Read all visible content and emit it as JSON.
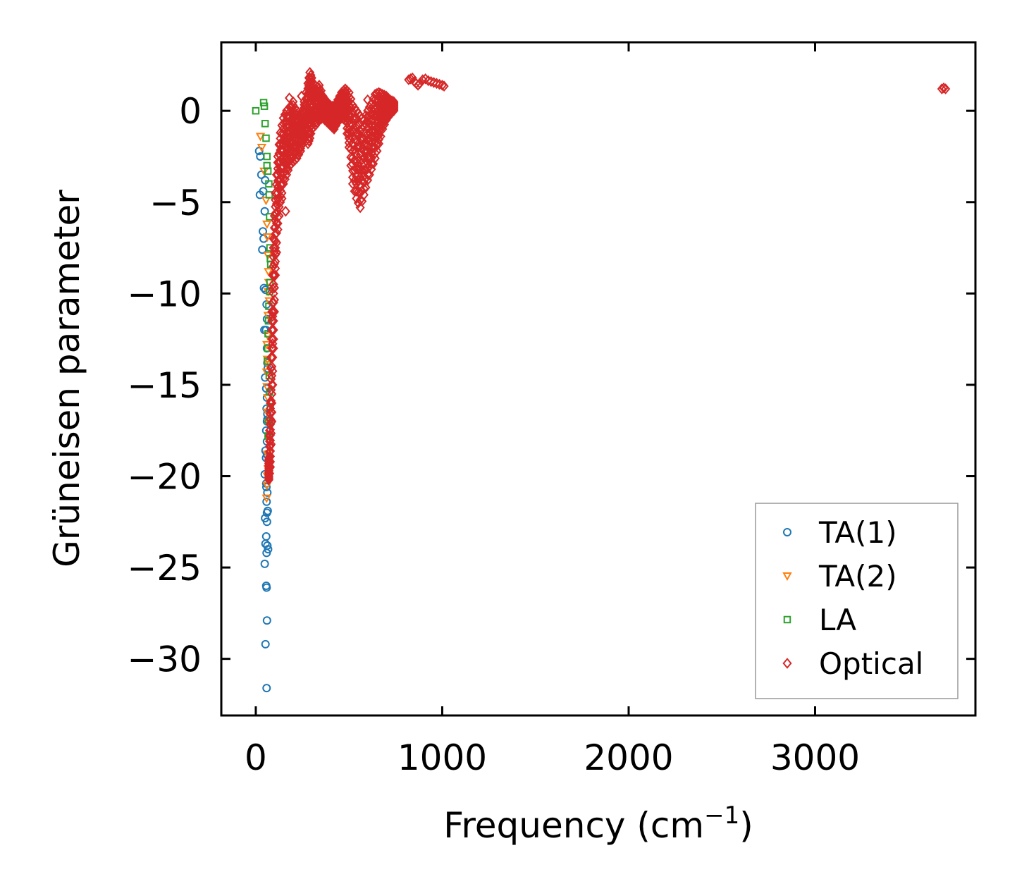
{
  "chart_data": {
    "type": "scatter",
    "title": "",
    "xlabel": "Frequency (cm",
    "xlabel_sup": "−1",
    "xlabel_suffix": ")",
    "ylabel": "Grüneisen parameter",
    "xlim": [
      -185,
      3860
    ],
    "ylim": [
      -33.1,
      3.75
    ],
    "xticks": [
      0,
      1000,
      2000,
      3000
    ],
    "xtick_labels": [
      "0",
      "1000",
      "2000",
      "3000"
    ],
    "yticks": [
      0,
      -5,
      -10,
      -15,
      -20,
      -25,
      -30
    ],
    "ytick_labels": [
      "0",
      "−5",
      "−10",
      "−15",
      "−20",
      "−25",
      "−30"
    ],
    "grid": false,
    "legend_position": "bottom-right",
    "series": [
      {
        "name": "TA(1)",
        "marker": "circle",
        "color": "#1f77b4",
        "x": [
          18,
          24,
          30,
          40,
          50,
          22,
          38,
          42,
          35,
          48,
          52,
          44,
          58,
          60,
          55,
          46,
          62,
          64,
          50,
          56,
          60,
          58,
          62,
          56,
          60,
          52,
          60,
          48,
          56,
          62,
          58,
          64,
          50,
          60,
          56,
          52,
          62,
          66,
          48,
          56,
          58,
          60,
          52,
          58,
          62,
          60,
          55,
          57,
          60,
          58,
          60
        ],
        "y": [
          -2.2,
          -2.5,
          -3.5,
          -4.4,
          -3.8,
          -4.6,
          -6.6,
          -7.0,
          -7.6,
          -5.5,
          -9.8,
          -9.7,
          -10.6,
          -11.4,
          -12.0,
          -12.0,
          -13.8,
          -14.1,
          -14.6,
          -15.2,
          -15.7,
          -16.3,
          -16.9,
          -17.5,
          -18.1,
          -18.6,
          -18.8,
          -19.9,
          -20.4,
          -20.9,
          -21.4,
          -21.9,
          -22.3,
          -22.5,
          -23.3,
          -23.7,
          -23.8,
          -24.0,
          -24.8,
          -26.0,
          -26.1,
          -27.9,
          -29.2,
          -31.6,
          -16.6,
          -17.0,
          -19.0,
          -20.6,
          -22.0,
          -24.2,
          -13.0
        ]
      },
      {
        "name": "TA(2)",
        "marker": "triangle-down",
        "color": "#ff7f0e",
        "x": [
          25,
          32,
          45,
          55,
          60,
          62,
          65,
          68,
          70,
          72,
          66,
          64,
          60,
          62,
          58,
          60,
          64,
          62,
          68,
          70,
          62,
          66,
          60,
          58,
          62,
          64,
          66
        ],
        "y": [
          -1.4,
          -2.0,
          -3.3,
          -4.9,
          -6.2,
          -6.9,
          -7.9,
          -8.8,
          -9.4,
          -10.4,
          -11.2,
          -12.3,
          -12.8,
          -13.6,
          -14.3,
          -15.1,
          -15.7,
          -16.5,
          -17.1,
          -18.0,
          -18.8,
          -19.6,
          -20.5,
          -21.2,
          -20.0,
          -13.9,
          -9.9
        ]
      },
      {
        "name": "LA",
        "marker": "square",
        "color": "#2ca02c",
        "x": [
          0,
          42,
          46,
          50,
          55,
          60,
          65,
          70,
          72,
          74,
          76,
          78,
          80,
          76,
          74,
          70,
          68,
          66,
          64,
          62,
          72,
          74,
          78,
          70,
          66,
          60
        ],
        "y": [
          0,
          0.45,
          0.25,
          -0.7,
          -1.5,
          -2.5,
          -3.3,
          -4.0,
          -4.6,
          -5.8,
          -7.5,
          -8.1,
          -8.4,
          -9.4,
          -9.9,
          -10.7,
          -11.5,
          -12.2,
          -13.0,
          -13.7,
          -14.5,
          -15.4,
          -16.2,
          -17.0,
          -17.8,
          -3.0
        ]
      },
      {
        "name": "Optical",
        "marker": "diamond",
        "color": "#d62728",
        "regions": [
          {
            "x": [
              70,
              78,
              86,
              95,
              105,
              118,
              132,
              148,
              165,
              182,
              200,
              220,
              240,
              260,
              280,
              290,
              300,
              320,
              340,
              360,
              380,
              400,
              420,
              440,
              460,
              480,
              500,
              520,
              540,
              560,
              580,
              600,
              620,
              640,
              660,
              680,
              700,
              720,
              740
            ],
            "ymax": [
              -19.0,
              -16.0,
              -11.0,
              -7.0,
              -4.5,
              -2.5,
              -1.2,
              -0.4,
              0.0,
              0.2,
              0.3,
              0.0,
              -0.5,
              0.5,
              1.5,
              2.1,
              1.8,
              1.2,
              1.4,
              0.8,
              0.5,
              0.3,
              0.2,
              0.6,
              1.0,
              1.2,
              1.0,
              0.3,
              0.0,
              -0.3,
              -0.5,
              0.0,
              0.4,
              0.9,
              1.0,
              0.9,
              0.8,
              0.6,
              0.5
            ],
            "ymin": [
              -20.2,
              -19.5,
              -17.0,
              -13.0,
              -9.0,
              -6.5,
              -5.0,
              -4.0,
              -3.5,
              -3.0,
              -2.8,
              -2.6,
              -2.2,
              -1.5,
              -1.8,
              -1.5,
              -1.0,
              -0.8,
              -0.5,
              -0.4,
              -0.6,
              -0.8,
              -1.0,
              -0.6,
              -0.4,
              -0.5,
              -2.0,
              -4.0,
              -4.8,
              -5.3,
              -4.6,
              -3.8,
              -3.2,
              -2.6,
              -1.8,
              -1.0,
              -0.5,
              -0.2,
              0.0
            ]
          }
        ],
        "x": [
          820,
          830,
          840,
          850,
          860,
          870,
          880,
          895,
          910,
          925,
          940,
          955,
          970,
          985,
          1000,
          1010,
          180,
          200,
          245,
          160,
          140,
          120,
          600,
          3680,
          3690,
          3700
        ],
        "y": [
          1.7,
          1.75,
          1.8,
          1.6,
          1.5,
          1.4,
          1.5,
          1.7,
          1.75,
          1.65,
          1.6,
          1.55,
          1.5,
          1.45,
          1.4,
          1.35,
          0.7,
          0.5,
          0.8,
          -5.5,
          -4.8,
          -4.2,
          0.6,
          1.2,
          1.25,
          1.2
        ]
      }
    ]
  }
}
